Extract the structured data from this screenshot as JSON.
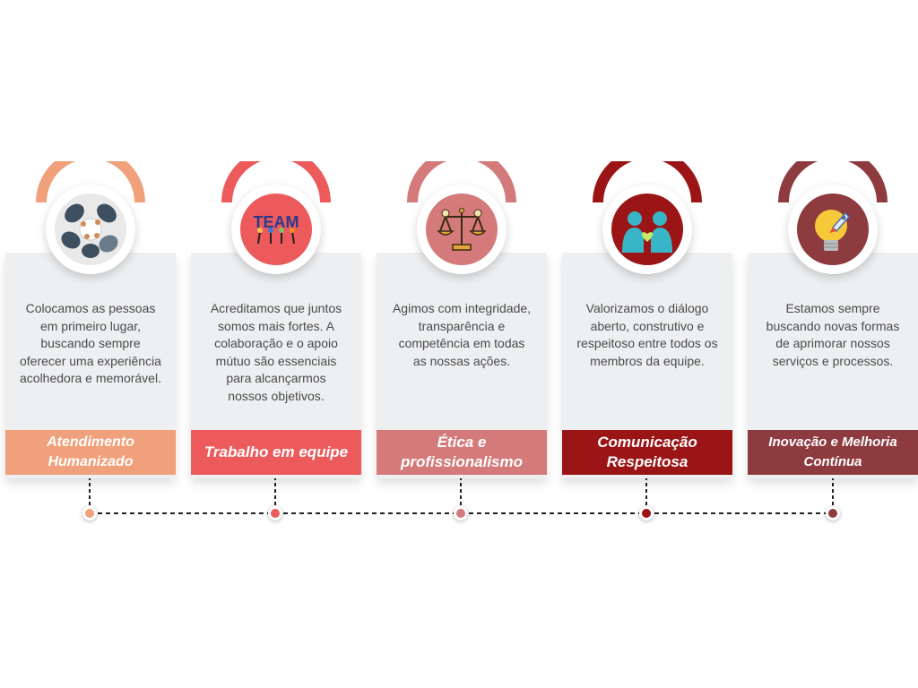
{
  "items": [
    {
      "title": "Atendimento Humanizado",
      "description": "Colocamos as pessoas em primeiro lugar, buscando sempre oferecer uma experiência acolhedora e memorável.",
      "color": "#f0a07a",
      "icon": "people-circle-icon"
    },
    {
      "title": "Trabalho em equipe",
      "description": "Acreditamos que juntos somos mais fortes. A colaboração e o apoio mútuo são essenciais para alcançarmos nossos objetivos.",
      "color": "#ec5a5c",
      "icon": "team-letters-icon",
      "icon_text": "TEAM"
    },
    {
      "title": "Ética e profissionalismo",
      "description": "Agimos com integridade, transparência e competência em todas as nossas ações.",
      "color": "#d47a7a",
      "icon": "scales-icon"
    },
    {
      "title": "Comunicação Respeitosa",
      "description": "Valorizamos o diálogo aberto, construtivo e respeitoso entre todos os membros da equipe.",
      "color": "#9b1416",
      "icon": "heart-people-icon"
    },
    {
      "title": "Inovação e Melhoria Contínua",
      "description": "Estamos sempre buscando novas formas de aprimorar nossos serviços e processos.",
      "color": "#8e3b3f",
      "icon": "lightbulb-rocket-icon"
    }
  ]
}
